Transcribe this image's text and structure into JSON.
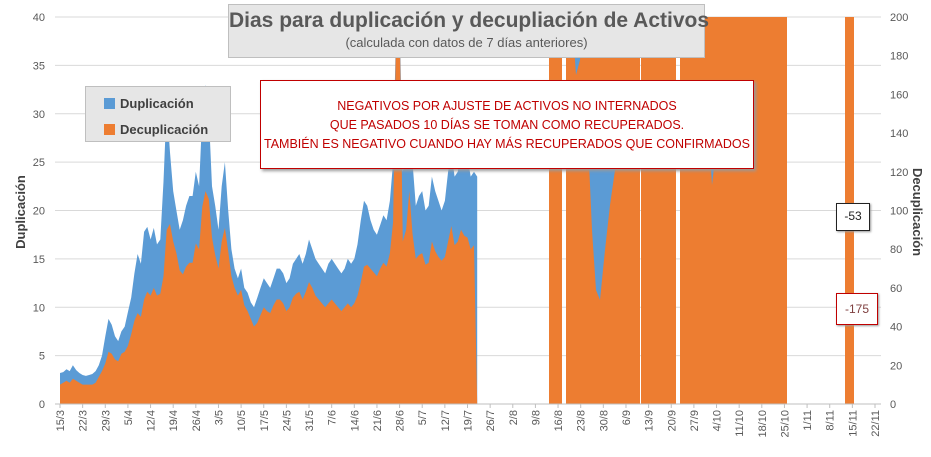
{
  "title": "Dias para duplicación y decupliación de Activos",
  "subtitle": "(calculada con datos de 7 días anteriores)",
  "note_lines": [
    "NEGATIVOS POR AJUSTE DE ACTIVOS NO INTERNADOS",
    "QUE PASADOS 10 DÍAS SE TOMAN COMO RECUPERADOS.",
    "TAMBIÉN ES NEGATIVO CUANDO HAY MÁS RECUPERADOS QUE CONFIRMADOS"
  ],
  "callouts": [
    "-53",
    "-175"
  ],
  "colors": {
    "duplicacion": "#5b9bd5",
    "decuplicacion": "#ed7d31"
  },
  "chart_data": {
    "type": "area",
    "xlabel": "",
    "ylabel": "Duplicación",
    "y2label": "Decuplicación",
    "ylim": [
      0,
      40
    ],
    "y2lim": [
      0,
      200
    ],
    "yticks": [
      0,
      5,
      10,
      15,
      20,
      25,
      30,
      35,
      40
    ],
    "y2ticks": [
      0,
      20,
      40,
      60,
      80,
      100,
      120,
      140,
      160,
      180,
      200
    ],
    "xticks": [
      "15/3",
      "22/3",
      "29/3",
      "5/4",
      "12/4",
      "19/4",
      "26/4",
      "3/5",
      "10/5",
      "17/5",
      "24/5",
      "31/5",
      "7/6",
      "14/6",
      "21/6",
      "28/6",
      "5/7",
      "12/7",
      "19/7",
      "26/7",
      "2/8",
      "9/8",
      "16/8",
      "23/8",
      "30/8",
      "6/9",
      "13/9",
      "20/9",
      "27/9",
      "4/10",
      "11/10",
      "18/10",
      "25/10",
      "1/11",
      "8/11",
      "15/11",
      "22/11"
    ],
    "grid": "horizontal",
    "legend": "top-left",
    "series": [
      {
        "name": "Duplicación",
        "axis": "left",
        "values": [
          3.2,
          3.3,
          3.6,
          3.4,
          4.0,
          3.5,
          3.2,
          3.0,
          2.9,
          3.0,
          3.1,
          3.4,
          4.0,
          5.0,
          7.0,
          8.8,
          8.2,
          7.0,
          6.5,
          7.5,
          8.0,
          9.5,
          11.0,
          13.5,
          15.5,
          14.5,
          17.8,
          18.3,
          17.0,
          18.2,
          16.5,
          17.0,
          23.0,
          31.0,
          26.0,
          22.0,
          20.0,
          18.0,
          19.0,
          20.5,
          21.5,
          21.5,
          24.0,
          22.5,
          30.0,
          33.0,
          30.0,
          22.5,
          20.5,
          18.0,
          22.5,
          25.0,
          20.0,
          16.0,
          14.0,
          13.0,
          14.0,
          12.0,
          11.5,
          10.5,
          10.0,
          11.0,
          12.0,
          13.0,
          12.5,
          12.0,
          13.0,
          14.0,
          14.0,
          13.5,
          12.5,
          13.0,
          14.5,
          15.0,
          15.5,
          14.5,
          15.5,
          17.0,
          16.0,
          15.0,
          14.5,
          14.0,
          13.5,
          14.5,
          15.0,
          14.5,
          14.0,
          13.5,
          14.0,
          15.0,
          14.5,
          15.0,
          16.5,
          19.0,
          21.0,
          20.5,
          19.0,
          18.0,
          17.5,
          18.5,
          19.5,
          19.0,
          21.0,
          25.0,
          42.0,
          42.0,
          24.0,
          26.0,
          31.0,
          25.0,
          20.5,
          21.5,
          22.0,
          20.0,
          20.5,
          23.5,
          22.0,
          21.0,
          20.0,
          21.0,
          24.0,
          26.0,
          23.5,
          24.0,
          27.0,
          26.0,
          25.5,
          23.5,
          24.0,
          23.5
        ]
      },
      {
        "name": "Decuplicación",
        "axis": "right",
        "values": [
          10,
          11,
          12,
          11,
          13,
          12,
          11,
          10,
          10,
          10,
          10,
          11,
          14,
          17,
          21,
          27,
          26,
          23,
          22,
          26,
          27,
          30,
          36,
          43,
          47,
          45,
          54,
          58,
          56,
          60,
          56,
          57,
          66,
          90,
          93,
          84,
          78,
          69,
          67,
          71,
          73,
          73,
          83,
          80,
          102,
          110,
          106,
          86,
          77,
          70,
          84,
          91,
          79,
          66,
          60,
          56,
          59,
          51,
          48,
          44,
          40,
          42,
          46,
          50,
          48,
          47,
          51,
          54,
          54,
          52,
          48,
          50,
          55,
          57,
          58,
          54,
          58,
          63,
          60,
          56,
          54,
          52,
          50,
          52,
          54,
          52,
          50,
          48,
          50,
          52,
          50,
          52,
          56,
          63,
          71,
          72,
          70,
          68,
          66,
          70,
          73,
          71,
          78,
          94,
          200,
          200,
          84,
          90,
          110,
          88,
          75,
          77,
          78,
          72,
          73,
          84,
          79,
          76,
          74,
          76,
          84,
          92,
          82,
          84,
          90,
          87,
          86,
          80,
          82,
          0
        ],
        "segments": [
          {
            "from": "16/8",
            "to": "19/8",
            "value": 200
          },
          {
            "from": "20/8",
            "to": "6/9",
            "value": 200
          },
          {
            "from": "10/9",
            "to": "20/9",
            "value": 200
          },
          {
            "from": "21/9",
            "to": "25/10",
            "value": 200
          },
          {
            "from": "14/11",
            "to": "15/11",
            "value": 200
          }
        ]
      }
    ]
  }
}
